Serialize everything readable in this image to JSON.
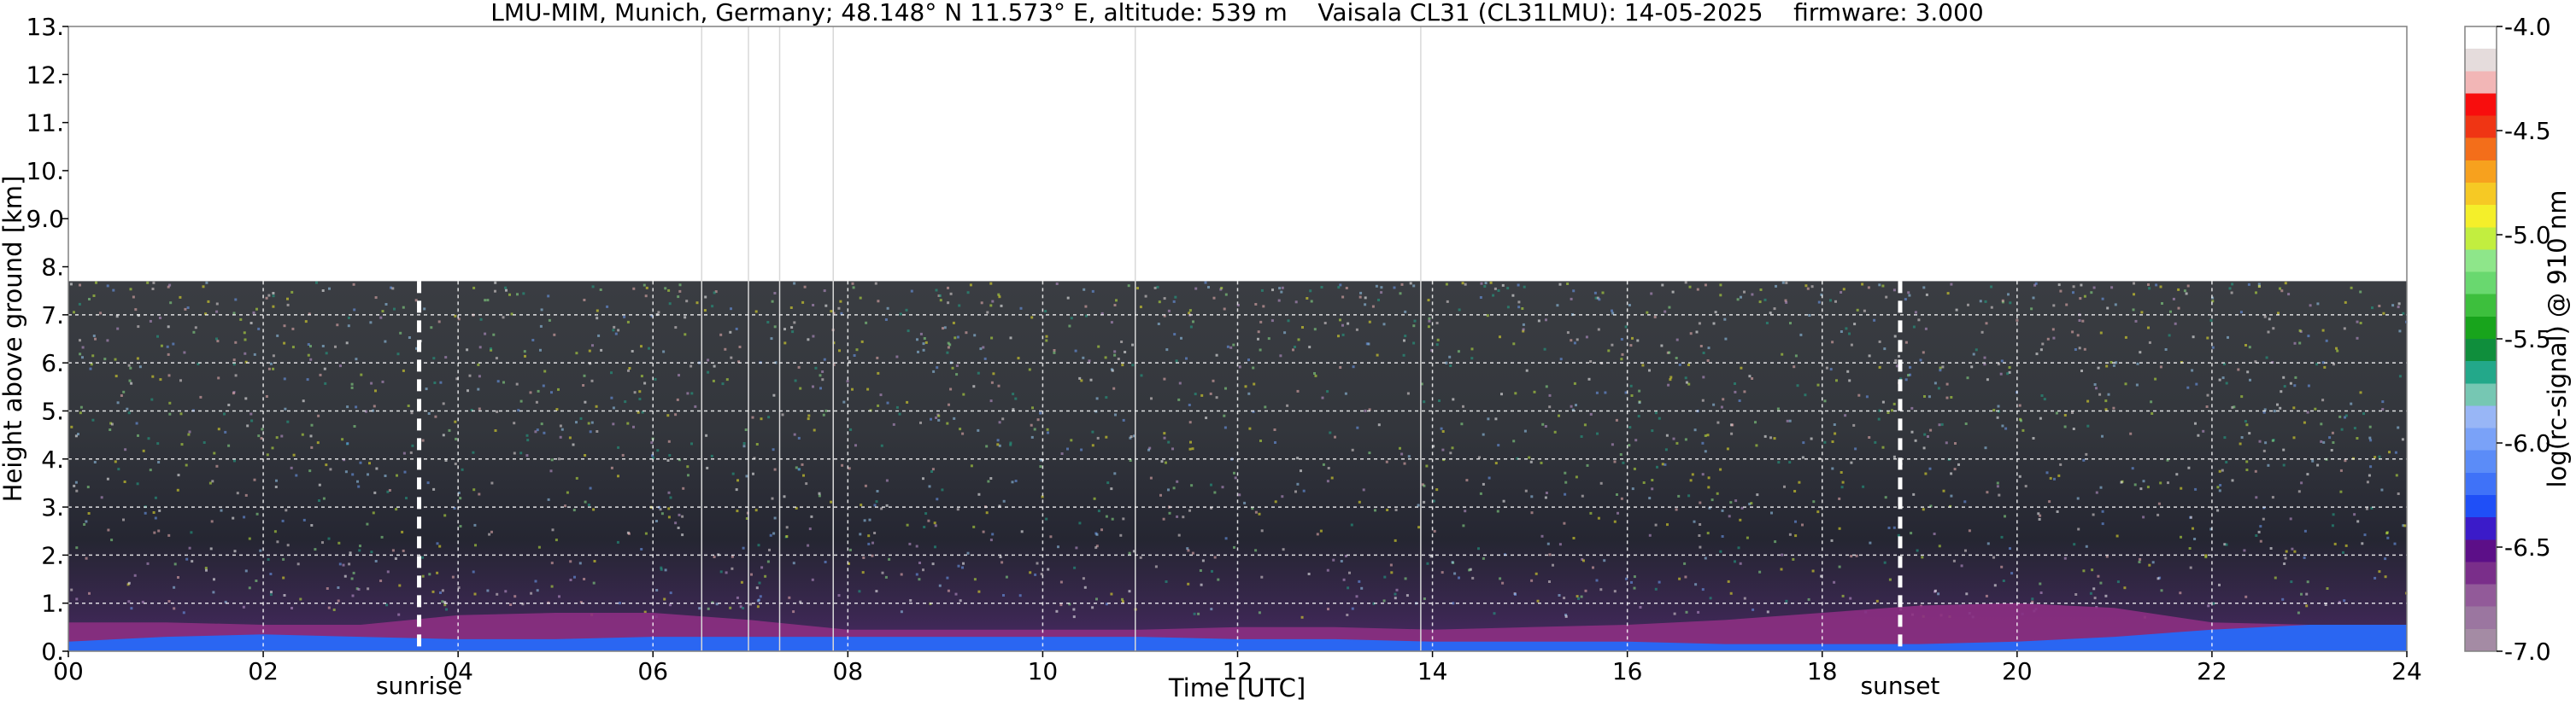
{
  "chart_data": {
    "type": "heatmap",
    "title": "LMU-MIM, Munich, Germany; 48.148° N 11.573° E, altitude: 539 m    Vaisala CL31 (CL31LMU): 14-05-2025    firmware: 3.000",
    "xlabel": "Time [UTC]",
    "ylabel": "Height above ground [km]",
    "colorbar_label": "log(rc-signal) @ 910 nm",
    "xlim": [
      0,
      24
    ],
    "ylim": [
      0,
      13
    ],
    "x_ticks": [
      0,
      2,
      4,
      6,
      8,
      10,
      12,
      14,
      16,
      18,
      20,
      22,
      24
    ],
    "x_tick_labels": [
      "00",
      "02",
      "04",
      "06",
      "08",
      "10",
      "12",
      "14",
      "16",
      "18",
      "20",
      "22",
      "24"
    ],
    "y_ticks": [
      0,
      1,
      2,
      3,
      4,
      5,
      6,
      7,
      8,
      9,
      10,
      11,
      12,
      13
    ],
    "y_tick_labels": [
      "0.",
      "1.",
      "2.",
      "3.",
      "4.",
      "5.",
      "6.",
      "7.",
      "8.",
      "9.0",
      "10.",
      "11.",
      "12.",
      "13."
    ],
    "colorbar_range": [
      -7.0,
      -4.0
    ],
    "colorbar_ticks": [
      -7.0,
      -6.5,
      -6.0,
      -5.5,
      -5.0,
      -4.5,
      -4.0
    ],
    "colorbar_tick_labels": [
      "-7.0",
      "-6.5",
      "-6.0",
      "-5.5",
      "-5.0",
      "-4.5",
      "-4.0"
    ],
    "colorbar_colors": [
      "#a48ba4",
      "#9b76a0",
      "#925a99",
      "#7a2e8a",
      "#5c0f88",
      "#3b1bc9",
      "#1f4ff7",
      "#3f72f8",
      "#5b8cf8",
      "#7aa2f8",
      "#98b6f6",
      "#76c7b3",
      "#23a88a",
      "#0f8e3c",
      "#18a41c",
      "#3dbf3d",
      "#69d86f",
      "#8ee68a",
      "#c2ee3f",
      "#f4ef2a",
      "#f6c924",
      "#f7a11e",
      "#f36e1a",
      "#ef3514",
      "#f80d0d",
      "#f2b6b6",
      "#e5dcdc",
      "#ffffff"
    ],
    "data_max_height_km": 7.7,
    "sunrise_hour": 3.6,
    "sunset_hour": 18.8,
    "sunrise_label": "sunrise",
    "sunset_label": "sunset",
    "missing_profile_hours": [
      6.5,
      6.98,
      7.3,
      7.85,
      10.95,
      13.88
    ],
    "grid": true,
    "aerosol_layer_top_km": [
      [
        0,
        0.6
      ],
      [
        1,
        0.6
      ],
      [
        2,
        0.55
      ],
      [
        3,
        0.55
      ],
      [
        4,
        0.75
      ],
      [
        5,
        0.8
      ],
      [
        6,
        0.8
      ],
      [
        7,
        0.65
      ],
      [
        8,
        0.45
      ],
      [
        9,
        0.45
      ],
      [
        10,
        0.45
      ],
      [
        11,
        0.45
      ],
      [
        12,
        0.5
      ],
      [
        13,
        0.5
      ],
      [
        14,
        0.45
      ],
      [
        15,
        0.5
      ],
      [
        16,
        0.55
      ],
      [
        17,
        0.65
      ],
      [
        18,
        0.8
      ],
      [
        19,
        0.95
      ],
      [
        20,
        1.0
      ],
      [
        21,
        0.9
      ],
      [
        22,
        0.6
      ],
      [
        23,
        0.55
      ],
      [
        24,
        0.55
      ]
    ],
    "blue_layer_top_km": [
      [
        0,
        0.2
      ],
      [
        1,
        0.3
      ],
      [
        2,
        0.35
      ],
      [
        3,
        0.3
      ],
      [
        4,
        0.25
      ],
      [
        5,
        0.25
      ],
      [
        6,
        0.3
      ],
      [
        7,
        0.3
      ],
      [
        8,
        0.3
      ],
      [
        9,
        0.3
      ],
      [
        10,
        0.3
      ],
      [
        11,
        0.3
      ],
      [
        12,
        0.25
      ],
      [
        13,
        0.25
      ],
      [
        14,
        0.2
      ],
      [
        15,
        0.2
      ],
      [
        16,
        0.2
      ],
      [
        17,
        0.15
      ],
      [
        18,
        0.15
      ],
      [
        19,
        0.15
      ],
      [
        20,
        0.2
      ],
      [
        21,
        0.3
      ],
      [
        22,
        0.45
      ],
      [
        23,
        0.55
      ],
      [
        24,
        0.55
      ]
    ]
  }
}
